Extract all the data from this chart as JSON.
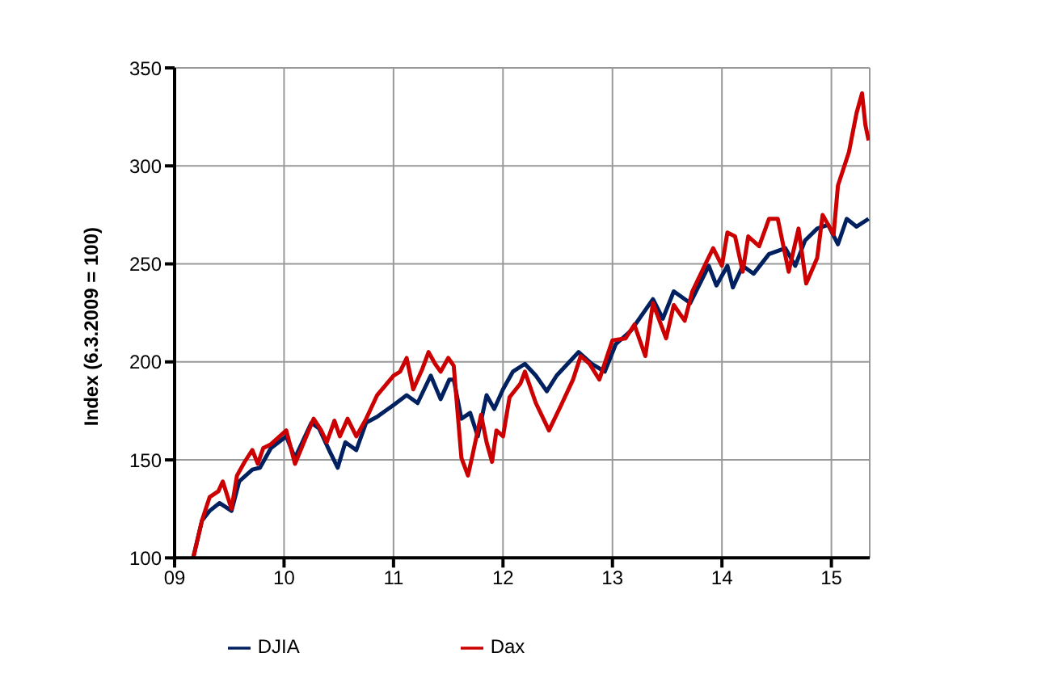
{
  "chart_data": {
    "type": "line",
    "ylabel": "Index (6.3.2009 = 100)",
    "xlim": [
      2009,
      2015.35
    ],
    "xticks": [
      {
        "value": 2009,
        "label": "09"
      },
      {
        "value": 2010,
        "label": "10"
      },
      {
        "value": 2011,
        "label": "11"
      },
      {
        "value": 2012,
        "label": "12"
      },
      {
        "value": 2013,
        "label": "13"
      },
      {
        "value": 2014,
        "label": "14"
      },
      {
        "value": 2015,
        "label": "15"
      }
    ],
    "ylim": [
      100,
      350
    ],
    "yticks": [
      100,
      150,
      200,
      250,
      300,
      350
    ],
    "grid": true,
    "legend": "bottom",
    "marker": "none",
    "line_style": "solid",
    "series": [
      {
        "name": "DJIA",
        "color": "#002060",
        "x": [
          2009.17,
          2009.25,
          2009.32,
          2009.41,
          2009.52,
          2009.59,
          2009.71,
          2009.78,
          2009.88,
          2010.02,
          2010.1,
          2010.25,
          2010.32,
          2010.42,
          2010.49,
          2010.56,
          2010.66,
          2010.75,
          2010.85,
          2011.0,
          2011.12,
          2011.22,
          2011.34,
          2011.43,
          2011.51,
          2011.55,
          2011.62,
          2011.7,
          2011.77,
          2011.85,
          2011.92,
          2012.0,
          2012.09,
          2012.2,
          2012.3,
          2012.4,
          2012.49,
          2012.69,
          2012.81,
          2012.93,
          2013.03,
          2013.17,
          2013.37,
          2013.46,
          2013.56,
          2013.71,
          2013.88,
          2013.95,
          2014.05,
          2014.1,
          2014.19,
          2014.29,
          2014.43,
          2014.58,
          2014.67,
          2014.76,
          2014.87,
          2014.97,
          2015.06,
          2015.14,
          2015.23,
          2015.34
        ],
        "values": [
          100,
          119,
          124,
          128,
          124,
          139,
          145,
          146,
          156,
          162,
          151,
          169,
          166,
          154,
          146,
          159,
          155,
          169,
          172,
          178,
          183,
          179,
          193,
          181,
          191,
          191,
          171,
          174,
          162,
          183,
          176,
          186,
          195,
          199,
          193,
          185,
          193,
          205,
          199,
          195,
          209,
          216,
          232,
          222,
          236,
          230,
          249,
          239,
          249,
          238,
          249,
          245,
          255,
          258,
          249,
          262,
          268,
          270,
          260,
          273,
          269,
          273
        ]
      },
      {
        "name": "Dax",
        "color": "#cc0000",
        "x": [
          2009.17,
          2009.25,
          2009.32,
          2009.4,
          2009.44,
          2009.52,
          2009.57,
          2009.64,
          2009.71,
          2009.76,
          2009.81,
          2009.88,
          2010.02,
          2010.1,
          2010.27,
          2010.34,
          2010.39,
          2010.46,
          2010.51,
          2010.58,
          2010.66,
          2010.75,
          2010.85,
          2011.0,
          2011.06,
          2011.12,
          2011.18,
          2011.26,
          2011.32,
          2011.38,
          2011.43,
          2011.5,
          2011.55,
          2011.62,
          2011.68,
          2011.72,
          2011.8,
          2011.85,
          2011.9,
          2011.94,
          2012.0,
          2012.06,
          2012.16,
          2012.2,
          2012.3,
          2012.42,
          2012.54,
          2012.64,
          2012.71,
          2012.79,
          2012.88,
          2013.0,
          2013.12,
          2013.2,
          2013.3,
          2013.37,
          2013.49,
          2013.56,
          2013.66,
          2013.73,
          2013.85,
          2013.92,
          2014.0,
          2014.05,
          2014.12,
          2014.19,
          2014.24,
          2014.34,
          2014.43,
          2014.51,
          2014.61,
          2014.7,
          2014.77,
          2014.87,
          2014.92,
          2015.02,
          2015.06,
          2015.16,
          2015.23,
          2015.28,
          2015.31,
          2015.34
        ],
        "values": [
          100,
          119,
          131,
          134,
          139,
          125,
          142,
          149,
          155,
          148,
          156,
          158,
          165,
          148,
          171,
          165,
          159,
          170,
          162,
          171,
          162,
          171,
          183,
          193,
          195,
          202,
          186,
          196,
          205,
          199,
          195,
          202,
          198,
          151,
          142,
          152,
          173,
          159,
          149,
          165,
          162,
          182,
          189,
          195,
          179,
          165,
          179,
          191,
          203,
          199,
          191,
          211,
          212,
          219,
          203,
          230,
          212,
          229,
          221,
          236,
          250,
          258,
          249,
          266,
          264,
          246,
          264,
          259,
          273,
          273,
          246,
          268,
          240,
          253,
          275,
          265,
          290,
          307,
          327,
          337,
          321,
          313
        ]
      }
    ]
  }
}
